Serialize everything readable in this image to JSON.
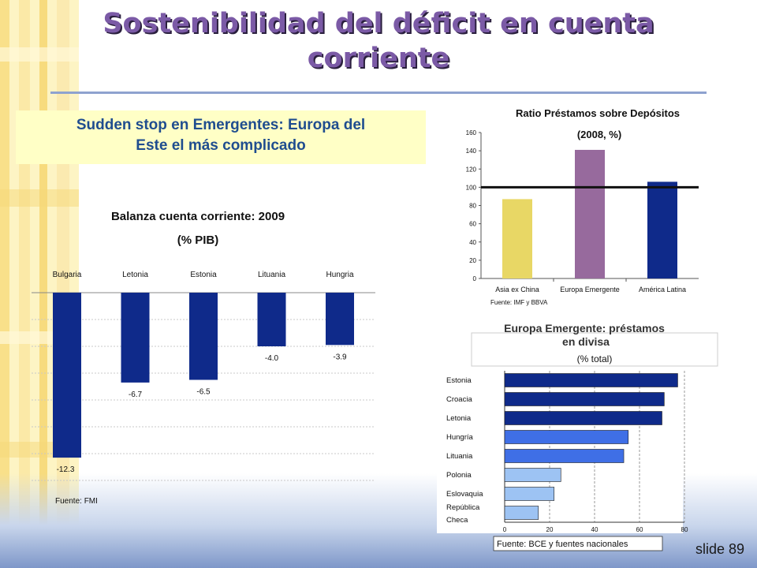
{
  "slide": {
    "title_line1": "Sostenibilidad del déficit en cuenta",
    "title_line2": "corriente",
    "subtitle_line1": "Sudden stop en Emergentes: Europa del",
    "subtitle_line2": "Este el más complicado",
    "slide_number": "slide 89"
  },
  "colors": {
    "navy": "#0f2a8a",
    "yellow": "#e8d765",
    "purple": "#976a9d",
    "mid_blue": "#3f6fe6",
    "light_blue": "#9dc3f3",
    "title_purple": "#7b5aa6",
    "subtitle_blue": "#1f4d8f",
    "subtitle_bg": "#ffffc6"
  },
  "chart_data": [
    {
      "type": "bar",
      "title": "Balanza cuenta corriente: 2009",
      "subtitle": "(% PIB)",
      "categories": [
        "Bulgaria",
        "Letonia",
        "Estonia",
        "Lituania",
        "Hungria"
      ],
      "values": [
        -12.3,
        -6.7,
        -6.5,
        -4.0,
        -3.9
      ],
      "value_labels": [
        "-12.3",
        "-6.7",
        "-6.5",
        "-4.0",
        "-3.9"
      ],
      "ylim": [
        -14,
        0
      ],
      "grid": true,
      "source": "Fuente: FMI"
    },
    {
      "type": "bar",
      "title": "Ratio Préstamos sobre Depósitos",
      "subtitle": "(2008, %)",
      "categories": [
        "Asia ex China",
        "Europa Emergente",
        "América Latina"
      ],
      "values": [
        87,
        141,
        106
      ],
      "ylim": [
        0,
        160
      ],
      "yticks": [
        "0",
        "20",
        "40",
        "60",
        "80",
        "100",
        "120",
        "140",
        "160"
      ],
      "reference_line": 100,
      "source": "Fuente: IMF y BBVA"
    },
    {
      "type": "bar",
      "orientation": "horizontal",
      "title": "Europa Emergente: préstamos en divisa",
      "subtitle": "(% total)",
      "categories": [
        "Estonia",
        "Croacia",
        "Letonia",
        "Hungría",
        "Lituania",
        "Polonia",
        "Eslovaquia",
        "República Checa"
      ],
      "values": [
        77,
        71,
        70,
        55,
        53,
        25,
        22,
        15
      ],
      "xlim": [
        0,
        80
      ],
      "xticks": [
        "0",
        "20",
        "40",
        "60",
        "80"
      ],
      "source": "Fuente: BCE y fuentes nacionales"
    }
  ]
}
